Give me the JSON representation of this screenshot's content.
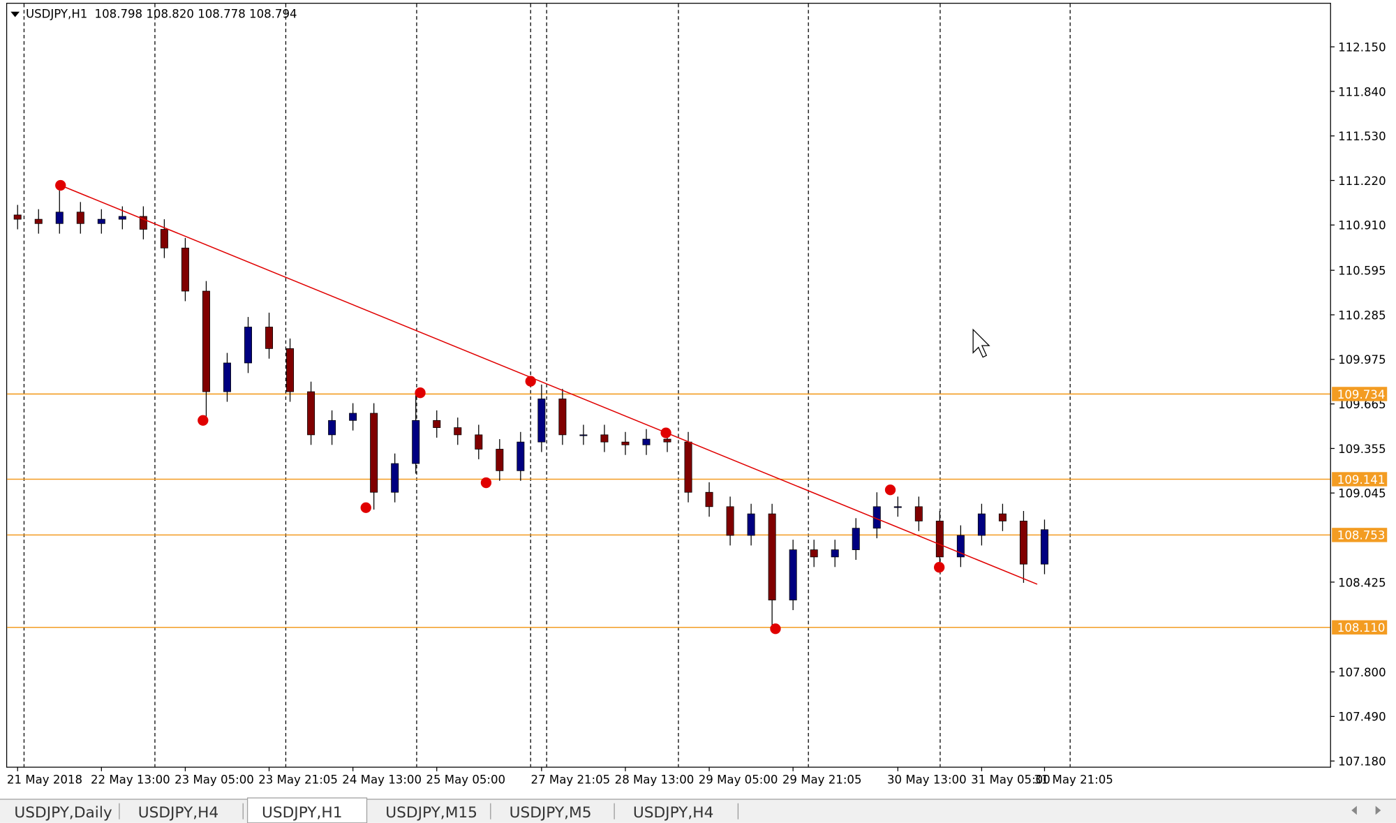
{
  "header": {
    "symbol": "USDJPY,H1",
    "quote": "108.798 108.820 108.778 108.794"
  },
  "tabs": [
    "USDJPY,Daily",
    "USDJPY,H4",
    "USDJPY,H1",
    "USDJPY,M15",
    "USDJPY,M5",
    "USDJPY,H4"
  ],
  "active_tab": 2,
  "chart_data": {
    "type": "candlestick",
    "up_color": "#000080",
    "down_color": "#800000",
    "level_color": "#f39c22",
    "ylim": [
      107.14,
      112.45
    ],
    "yticks": [
      {
        "value": 112.15,
        "label": "112.150"
      },
      {
        "value": 111.84,
        "label": "111.840"
      },
      {
        "value": 111.53,
        "label": "111.530"
      },
      {
        "value": 111.22,
        "label": "111.220"
      },
      {
        "value": 110.91,
        "label": "110.910"
      },
      110.595,
      110.285,
      109.975,
      109.665,
      109.355,
      109.045,
      108.425,
      {
        "value": 107.8,
        "label": "107.800"
      },
      {
        "value": 107.49,
        "label": "107.490"
      },
      {
        "value": 107.18,
        "label": "107.180"
      }
    ],
    "levels": [
      109.734,
      109.141,
      108.753,
      {
        "value": 108.11,
        "label": "108.110"
      }
    ],
    "categories": [
      "21 May 2018",
      null,
      null,
      null,
      "22 May 13:00",
      null,
      null,
      null,
      "23 May 05:00",
      null,
      null,
      null,
      "23 May 21:05",
      null,
      null,
      null,
      "24 May 13:00",
      null,
      null,
      null,
      "25 May 05:00",
      null,
      null,
      null,
      null,
      "27 May 21:05",
      null,
      null,
      null,
      "28 May 13:00",
      null,
      null,
      null,
      "29 May 05:00",
      null,
      null,
      null,
      "29 May 21:05",
      null,
      null,
      null,
      null,
      "30 May 13:00",
      null,
      null,
      null,
      "31 May 05:00",
      null,
      null,
      "31 May 21:05"
    ],
    "open": [
      110.98,
      110.95,
      110.92,
      111.0,
      110.92,
      110.95,
      110.97,
      110.88,
      110.75,
      110.45,
      109.75,
      109.95,
      110.2,
      110.05,
      109.75,
      109.45,
      109.55,
      109.6,
      109.05,
      109.25,
      109.55,
      109.5,
      109.45,
      109.35,
      109.2,
      109.4,
      109.7,
      109.45,
      109.45,
      109.4,
      109.38,
      109.42,
      109.4,
      109.05,
      108.95,
      108.75,
      108.9,
      108.3,
      108.65,
      108.6,
      108.65,
      108.8,
      108.95,
      108.95,
      108.85,
      108.6,
      108.75,
      108.9,
      108.85,
      108.55
    ],
    "high": [
      111.05,
      111.02,
      111.15,
      111.07,
      111.02,
      111.04,
      111.04,
      110.95,
      110.82,
      110.52,
      110.02,
      110.27,
      110.3,
      110.12,
      109.82,
      109.62,
      109.67,
      109.67,
      109.32,
      109.73,
      109.62,
      109.57,
      109.52,
      109.42,
      109.47,
      109.8,
      109.77,
      109.52,
      109.52,
      109.47,
      109.49,
      109.48,
      109.47,
      109.12,
      109.02,
      108.97,
      108.97,
      108.72,
      108.72,
      108.72,
      108.87,
      109.05,
      109.02,
      109.02,
      108.92,
      108.82,
      108.97,
      108.97,
      108.92,
      108.86
    ],
    "low": [
      110.88,
      110.85,
      110.85,
      110.85,
      110.85,
      110.88,
      110.81,
      110.68,
      110.38,
      109.55,
      109.68,
      109.88,
      109.98,
      109.68,
      109.38,
      109.38,
      109.48,
      108.93,
      108.98,
      109.18,
      109.43,
      109.38,
      109.28,
      109.13,
      109.13,
      109.33,
      109.38,
      109.38,
      109.33,
      109.31,
      109.31,
      109.33,
      108.98,
      108.88,
      108.68,
      108.68,
      108.11,
      108.23,
      108.53,
      108.53,
      108.58,
      108.73,
      108.88,
      108.78,
      108.55,
      108.53,
      108.68,
      108.78,
      108.42,
      108.48
    ],
    "close": [
      110.95,
      110.92,
      111.0,
      110.92,
      110.95,
      110.97,
      110.88,
      110.75,
      110.45,
      109.75,
      109.95,
      110.2,
      110.05,
      109.75,
      109.45,
      109.55,
      109.6,
      109.05,
      109.25,
      109.55,
      109.5,
      109.45,
      109.35,
      109.2,
      109.4,
      109.7,
      109.45,
      109.45,
      109.4,
      109.38,
      109.42,
      109.4,
      109.05,
      108.95,
      108.75,
      108.9,
      108.3,
      108.65,
      108.6,
      108.65,
      108.8,
      108.95,
      108.95,
      108.85,
      108.6,
      108.75,
      108.9,
      108.85,
      108.55,
      108.79
    ]
  }
}
